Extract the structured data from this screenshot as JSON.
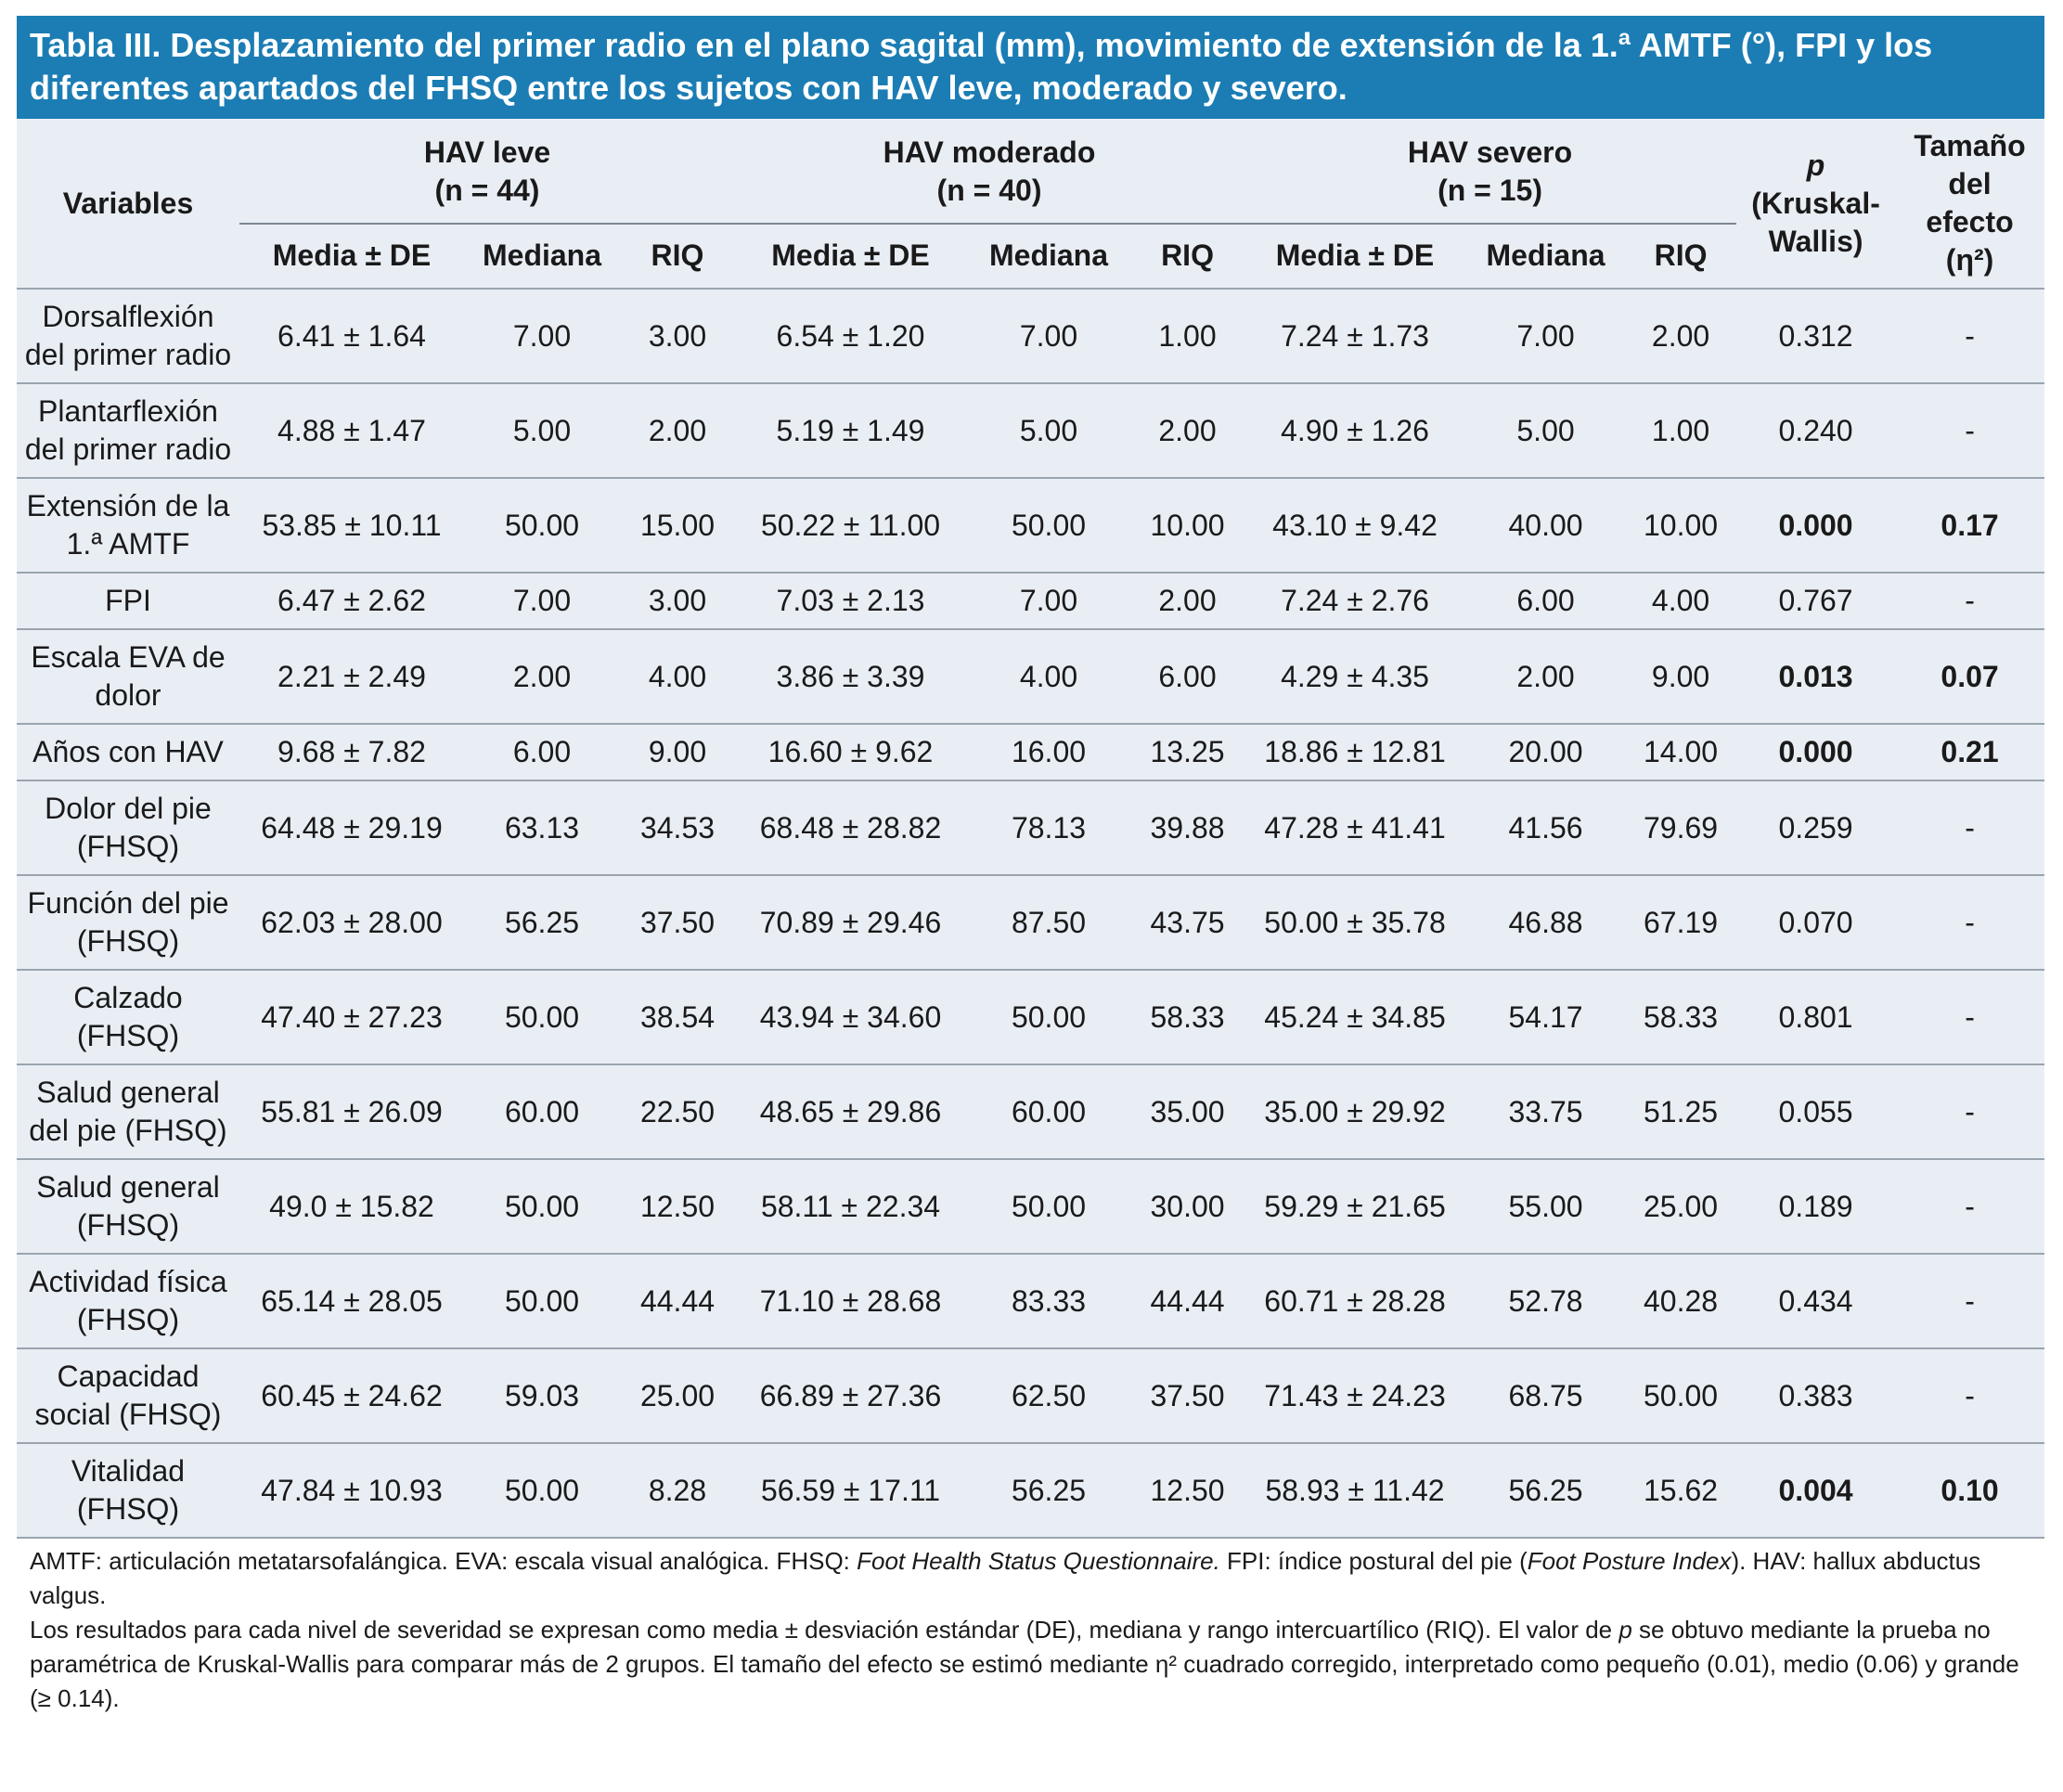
{
  "title": "Tabla III. Desplazamiento del primer radio en el plano sagital (mm), movimiento de extensión de la 1.ª AMTF (°), FPI y los diferentes apartados del FHSQ entre los sujetos con HAV leve, moderado y severo.",
  "header": {
    "variables": "Variables",
    "groups": [
      "HAV leve\n(n = 44)",
      "HAV moderado\n(n = 40)",
      "HAV severo\n(n = 15)"
    ],
    "subheaders": [
      "Media ± DE",
      "Mediana",
      "RIQ",
      "Media ± DE",
      "Mediana",
      "RIQ",
      "Media ± DE",
      "Mediana",
      "RIQ"
    ],
    "p_symbol": "p",
    "p_test": "(Kruskal-\nWallis)",
    "effect": "Tamaño\ndel\nefecto\n(η²)"
  },
  "table": {
    "rows": [
      [
        "Dorsalflexión del primer radio",
        "6.41 ± 1.64",
        "7.00",
        "3.00",
        "6.54 ± 1.20",
        "7.00",
        "1.00",
        "7.24 ± 1.73",
        "7.00",
        "2.00",
        "0.312",
        "-"
      ],
      [
        "Plantarflexión del primer radio",
        "4.88 ± 1.47",
        "5.00",
        "2.00",
        "5.19 ± 1.49",
        "5.00",
        "2.00",
        "4.90 ± 1.26",
        "5.00",
        "1.00",
        "0.240",
        "-"
      ],
      [
        "Extensión de la 1.ª AMTF",
        "53.85 ± 10.11",
        "50.00",
        "15.00",
        "50.22 ± 11.00",
        "50.00",
        "10.00",
        "43.10 ± 9.42",
        "40.00",
        "10.00",
        "0.000",
        "0.17"
      ],
      [
        "FPI",
        "6.47 ± 2.62",
        "7.00",
        "3.00",
        "7.03 ± 2.13",
        "7.00",
        "2.00",
        "7.24 ± 2.76",
        "6.00",
        "4.00",
        "0.767",
        "-"
      ],
      [
        "Escala EVA de dolor",
        "2.21 ± 2.49",
        "2.00",
        "4.00",
        "3.86 ± 3.39",
        "4.00",
        "6.00",
        "4.29 ± 4.35",
        "2.00",
        "9.00",
        "0.013",
        "0.07"
      ],
      [
        "Años con HAV",
        "9.68 ± 7.82",
        "6.00",
        "9.00",
        "16.60 ± 9.62",
        "16.00",
        "13.25",
        "18.86 ± 12.81",
        "20.00",
        "14.00",
        "0.000",
        "0.21"
      ],
      [
        "Dolor del pie (FHSQ)",
        "64.48 ± 29.19",
        "63.13",
        "34.53",
        "68.48 ± 28.82",
        "78.13",
        "39.88",
        "47.28 ± 41.41",
        "41.56",
        "79.69",
        "0.259",
        "-"
      ],
      [
        "Función del pie (FHSQ)",
        "62.03 ± 28.00",
        "56.25",
        "37.50",
        "70.89 ± 29.46",
        "87.50",
        "43.75",
        "50.00 ± 35.78",
        "46.88",
        "67.19",
        "0.070",
        "-"
      ],
      [
        "Calzado (FHSQ)",
        "47.40 ± 27.23",
        "50.00",
        "38.54",
        "43.94 ± 34.60",
        "50.00",
        "58.33",
        "45.24 ± 34.85",
        "54.17",
        "58.33",
        "0.801",
        "-"
      ],
      [
        "Salud general del pie (FHSQ)",
        "55.81 ± 26.09",
        "60.00",
        "22.50",
        "48.65 ± 29.86",
        "60.00",
        "35.00",
        "35.00 ± 29.92",
        "33.75",
        "51.25",
        "0.055",
        "-"
      ],
      [
        "Salud general (FHSQ)",
        "49.0 ± 15.82",
        "50.00",
        "12.50",
        "58.11 ± 22.34",
        "50.00",
        "30.00",
        "59.29 ± 21.65",
        "55.00",
        "25.00",
        "0.189",
        "-"
      ],
      [
        "Actividad física (FHSQ)",
        "65.14 ± 28.05",
        "50.00",
        "44.44",
        "71.10 ± 28.68",
        "83.33",
        "44.44",
        "60.71 ± 28.28",
        "52.78",
        "40.28",
        "0.434",
        "-"
      ],
      [
        "Capacidad social (FHSQ)",
        "60.45 ± 24.62",
        "59.03",
        "25.00",
        "66.89 ± 27.36",
        "62.50",
        "37.50",
        "71.43 ± 24.23",
        "68.75",
        "50.00",
        "0.383",
        "-"
      ],
      [
        "Vitalidad (FHSQ)",
        "47.84 ± 10.93",
        "50.00",
        "8.28",
        "56.59 ± 17.11",
        "56.25",
        "12.50",
        "58.93 ± 11.42",
        "56.25",
        "15.62",
        "0.004",
        "0.10"
      ]
    ]
  },
  "footnotes": [
    [
      {
        "text": "AMTF: articulación metatarsofalángica. EVA: escala visual analógica. FHSQ: "
      },
      {
        "text": "Foot Health Status Questionnaire.",
        "italic": true
      },
      {
        "text": " FPI: índice postural del pie ("
      },
      {
        "text": "Foot Posture Index",
        "italic": true
      },
      {
        "text": "). HAV: hallux abductus valgus."
      }
    ],
    [
      {
        "text": "Los resultados para cada nivel de severidad se expresan como media ± desviación estándar (DE), mediana y rango intercuartílico (RIQ). El valor de "
      },
      {
        "text": "p",
        "italic": true
      },
      {
        "text": " se obtuvo mediante la prueba no paramétrica de Kruskal-Wallis para comparar más de 2 grupos. El tamaño del efecto se estimó mediante η² cuadrado corregido, interpretado como pequeño (0.01), medio (0.06) y grande (≥ 0.14)."
      }
    ]
  ]
}
